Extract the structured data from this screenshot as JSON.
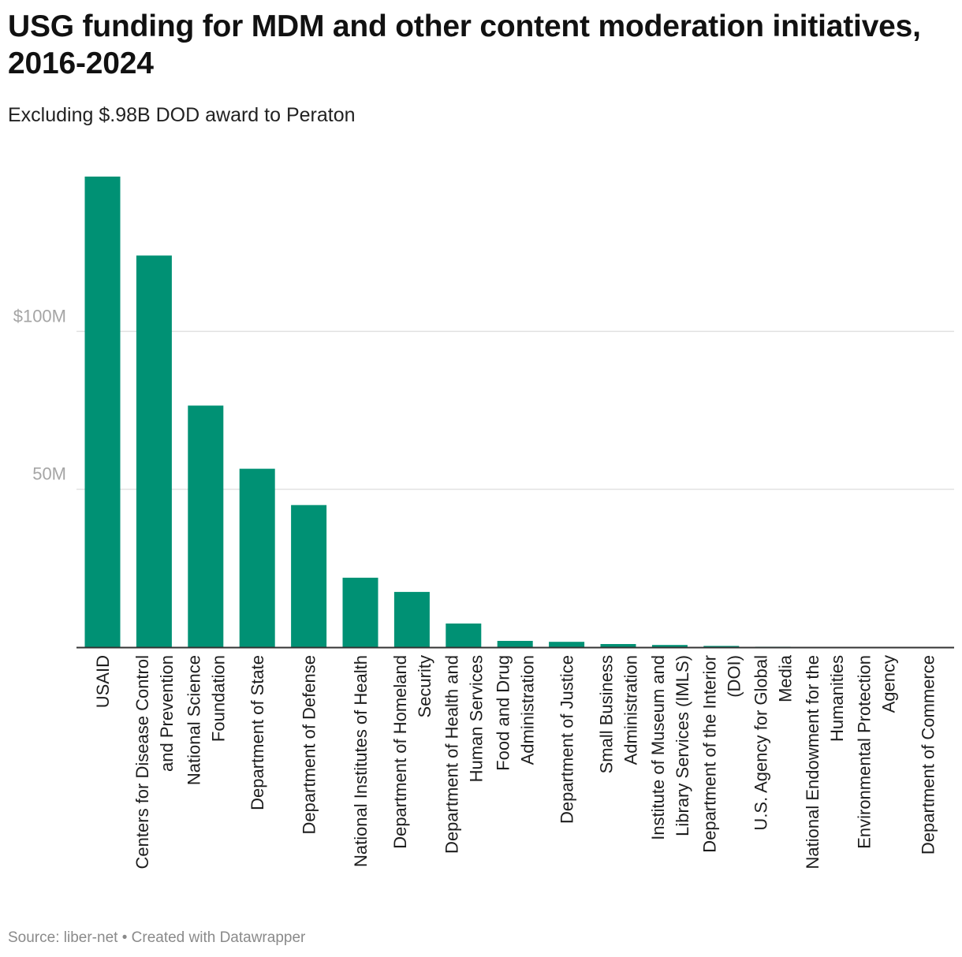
{
  "title": "USG funding for MDM and other content moderation initiatives, 2016-2024",
  "subtitle": "Excluding $.98B DOD award to Peraton",
  "footer": {
    "source_label": "Source:",
    "source": "liber-net",
    "separator": "•",
    "credit": "Created with Datawrapper"
  },
  "colors": {
    "bar": "#009174",
    "gridline": "#e1e1e1",
    "axis": "#333333",
    "tick_label": "#a5a5a5",
    "category_label": "#1d1d1d"
  },
  "chart_data": {
    "type": "bar",
    "orientation": "vertical",
    "title": "USG funding for MDM and other content moderation initiatives, 2016-2024",
    "subtitle": "Excluding $.98B DOD award to Peraton",
    "xlabel": "",
    "ylabel": "",
    "ylim": [
      0,
      150000000
    ],
    "yticks": [
      {
        "value": 50000000,
        "label": "50M"
      },
      {
        "value": 100000000,
        "label": "$100M"
      }
    ],
    "grid": true,
    "legend": "none",
    "categories": [
      "USAID",
      "Centers for Disease Control and Prevention",
      "National Science Foundation",
      "Department of State",
      "Department of Defense",
      "National Institutes of Health",
      "Department of Homeland Security",
      "Department of Health and Human Services",
      "Food and Drug Administration",
      "Department of Justice",
      "Small Business Administration",
      "Institute of Museum and Library Services (IMLS)",
      "Department of the Interior (DOI)",
      "U.S. Agency for Global Media",
      "National Endowment for the Humanities",
      "Environmental Protection Agency",
      "Department of Commerce"
    ],
    "category_label_lines": [
      [
        "USAID"
      ],
      [
        "Centers for Disease Control",
        "and Prevention"
      ],
      [
        "National Science",
        "Foundation"
      ],
      [
        "Department of State"
      ],
      [
        "Department of Defense"
      ],
      [
        "National Institutes of Health"
      ],
      [
        "Department of Homeland",
        "Security"
      ],
      [
        "Department of Health and",
        "Human Services"
      ],
      [
        "Food and Drug",
        "Administration"
      ],
      [
        "Department of Justice"
      ],
      [
        "Small Business",
        "Administration"
      ],
      [
        "Institute of Museum and",
        "Library Services (IMLS)"
      ],
      [
        "Department of the Interior",
        "(DOI)"
      ],
      [
        "U.S. Agency for Global",
        "Media"
      ],
      [
        "National Endowment for the",
        "Humanities"
      ],
      [
        "Environmental Protection",
        "Agency"
      ],
      [
        "Department of Commerce"
      ]
    ],
    "values": [
      149000000,
      124000000,
      76500000,
      56500000,
      45000000,
      22000000,
      17500000,
      7500000,
      2000000,
      1700000,
      1000000,
      700000,
      400000,
      150000,
      100000,
      80000,
      50000
    ]
  }
}
